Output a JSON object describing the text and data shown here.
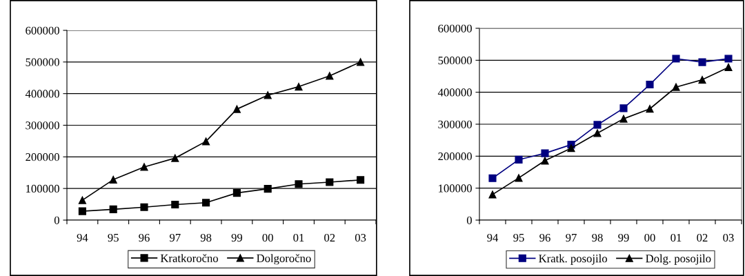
{
  "chart_data": [
    {
      "type": "line",
      "categories": [
        "94",
        "95",
        "96",
        "97",
        "98",
        "99",
        "00",
        "01",
        "02",
        "03"
      ],
      "ylim": [
        0,
        600000
      ],
      "yticks": [
        0,
        100000,
        200000,
        300000,
        400000,
        500000,
        600000
      ],
      "grid": "y",
      "legend": "bottom",
      "series": [
        {
          "name": "Kratkoročno",
          "color": "#000000",
          "marker": "square",
          "values": [
            28000,
            34000,
            41000,
            49000,
            55000,
            86000,
            99000,
            114000,
            120000,
            127000
          ]
        },
        {
          "name": "Dolgoročno",
          "color": "#000000",
          "marker": "triangle",
          "values": [
            63000,
            128000,
            168000,
            196000,
            249000,
            351000,
            395000,
            422000,
            456000,
            500000
          ]
        }
      ]
    },
    {
      "type": "line",
      "categories": [
        "94",
        "95",
        "96",
        "97",
        "98",
        "99",
        "00",
        "01",
        "02",
        "03"
      ],
      "ylim": [
        0,
        600000
      ],
      "yticks": [
        0,
        100000,
        200000,
        300000,
        400000,
        500000,
        600000
      ],
      "grid": "y",
      "legend": "bottom",
      "series": [
        {
          "name": "Kratk. posojilo",
          "color": "#000080",
          "marker": "square",
          "values": [
            131000,
            189000,
            209000,
            236000,
            298000,
            350000,
            424000,
            505000,
            494000,
            505000
          ]
        },
        {
          "name": "Dolg. posojilo",
          "color": "#000000",
          "marker": "triangle",
          "values": [
            80000,
            132000,
            186000,
            225000,
            272000,
            317000,
            348000,
            416000,
            439000,
            478000
          ]
        }
      ]
    }
  ]
}
